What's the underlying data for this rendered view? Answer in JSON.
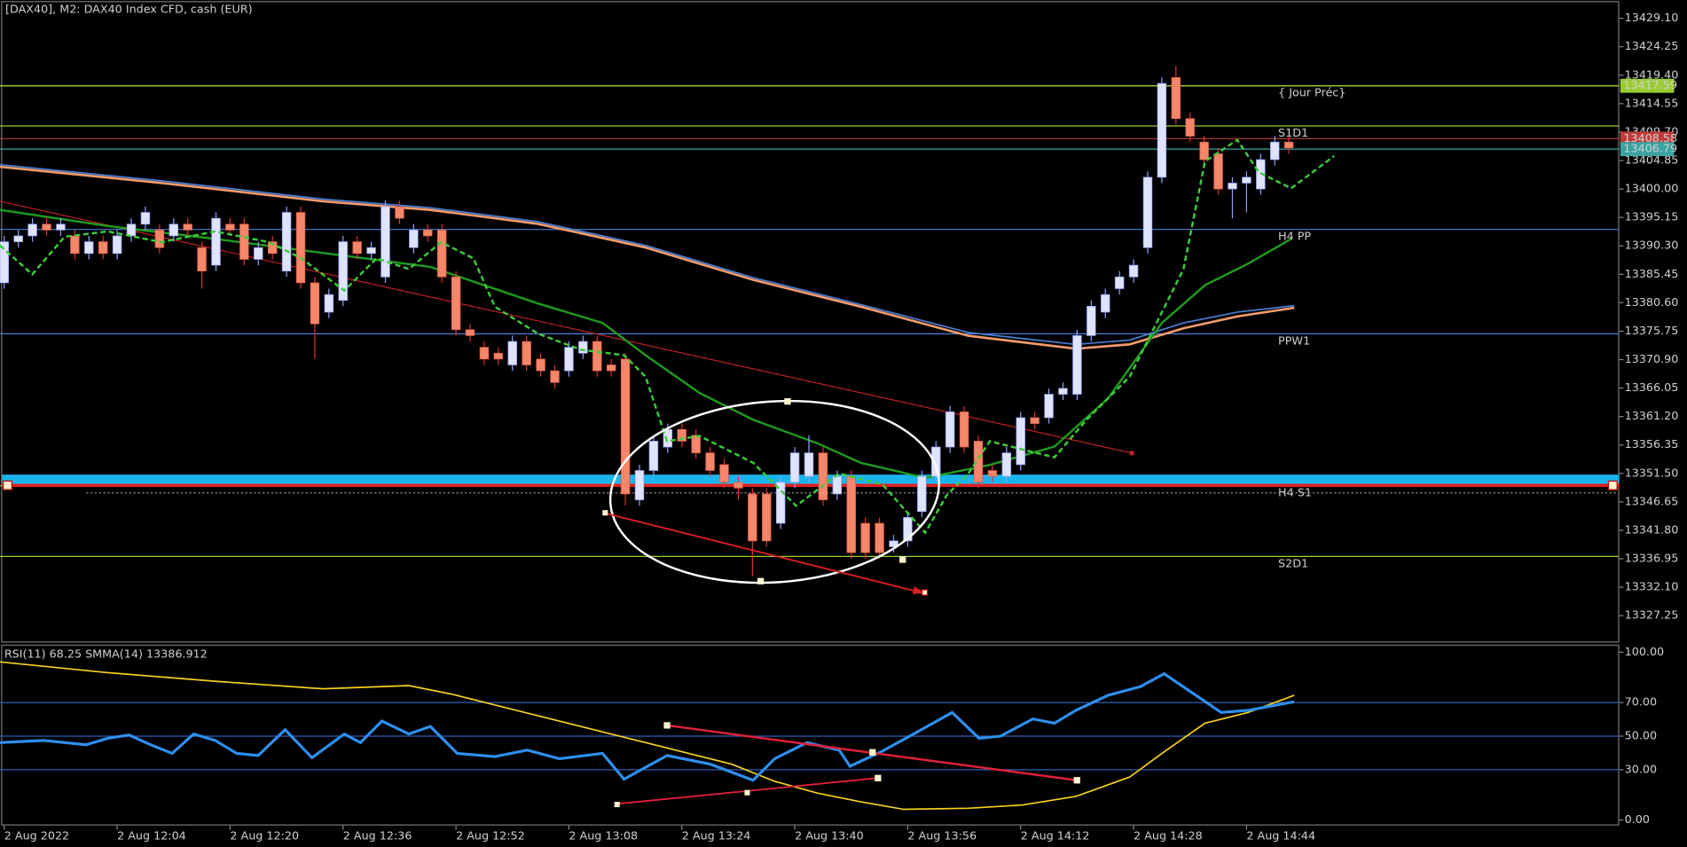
{
  "chart_data": {
    "type": "candlestick",
    "title": "[DAX40], M2:  DAX40 Index CFD, cash (EUR)",
    "bull_color": "#dfe3ff",
    "bear_color": "#f4866a",
    "open": [
      13384,
      13391,
      13392,
      13394,
      13393,
      13392,
      13389,
      13391,
      13389,
      13392,
      13394,
      13393,
      13392,
      13394,
      13390,
      13387,
      13394,
      13394,
      13388,
      13391,
      13386,
      13396,
      13384,
      13379,
      13381,
      13391,
      13389,
      13385,
      13397,
      13390,
      13393,
      13393,
      13385,
      13376,
      13373,
      13372,
      13370,
      13374,
      13371,
      13369,
      13369,
      13372,
      13374,
      13370,
      13371,
      13347,
      13352,
      13356,
      13359,
      13358,
      13355,
      13353,
      13350,
      13348,
      13348,
      13343,
      13350,
      13351,
      13355,
      13348,
      13351,
      13343,
      13343,
      13339,
      13340,
      13345,
      13351,
      13356,
      13362,
      13357,
      13352,
      13351,
      13353,
      13361,
      13361,
      13365,
      13365,
      13375,
      13379,
      13383,
      13385,
      13390,
      13402,
      13419,
      13412,
      13408,
      13406,
      13400,
      13401,
      13400,
      13405,
      13408
    ],
    "high": [
      13392,
      13393,
      13395,
      13395,
      13395,
      13393,
      13392,
      13392,
      13393,
      13395,
      13397,
      13394,
      13395,
      13395,
      13391,
      13396,
      13395,
      13395,
      13391,
      13392,
      13397,
      13397,
      13385,
      13383,
      13392,
      13392,
      13391,
      13398,
      13398,
      13394,
      13394,
      13394,
      13386,
      13377,
      13374,
      13373,
      13375,
      13375,
      13372,
      13370,
      13374,
      13375,
      13375,
      13371,
      13372,
      13353,
      13358,
      13360,
      13360,
      13359,
      13356,
      13354,
      13351,
      13349,
      13349,
      13351,
      13356,
      13358,
      13356,
      13352,
      13352,
      13344,
      13344,
      13341,
      13345,
      13352,
      13357,
      13363,
      13363,
      13358,
      13353,
      13356,
      13362,
      13362,
      13366,
      13367,
      13376,
      13381,
      13383,
      13386,
      13388,
      13403,
      13419,
      13421,
      13413,
      13409,
      13407,
      13402,
      13403,
      13406,
      13409,
      13409
    ],
    "low": [
      13383,
      13390,
      13391,
      13392,
      13392,
      13388,
      13388,
      13388,
      13388,
      13391,
      13393,
      13389,
      13391,
      13392,
      13383,
      13386,
      13392,
      13387,
      13387,
      13388,
      13385,
      13383,
      13371,
      13378,
      13380,
      13388,
      13388,
      13384,
      13394,
      13389,
      13391,
      13384,
      13375,
      13374,
      13370,
      13370,
      13369,
      13369,
      13368,
      13366,
      13368,
      13371,
      13368,
      13368,
      13346,
      13346,
      13351,
      13355,
      13356,
      13354,
      13351,
      13349,
      13347,
      13334,
      13339,
      13342,
      13349,
      13350,
      13346,
      13347,
      13337,
      13337,
      13337,
      13338,
      13339,
      13344,
      13350,
      13355,
      13355,
      13349,
      13350,
      13350,
      13352,
      13359,
      13360,
      13364,
      13364,
      13374,
      13378,
      13382,
      13384,
      13389,
      13401,
      13411,
      13408,
      13404,
      13399,
      13395,
      13396,
      13399,
      13404,
      13406
    ],
    "close": [
      13391,
      13392,
      13394,
      13393,
      13394,
      13389,
      13391,
      13389,
      13392,
      13394,
      13396,
      13390,
      13394,
      13393,
      13386,
      13395,
      13393,
      13388,
      13390,
      13389,
      13396,
      13384,
      13377,
      13382,
      13391,
      13389,
      13390,
      13397,
      13395,
      13393,
      13392,
      13385,
      13376,
      13375,
      13371,
      13371,
      13374,
      13370,
      13369,
      13367,
      13373,
      13374,
      13369,
      13369,
      13348,
      13352,
      13357,
      13359,
      13357,
      13355,
      13352,
      13350,
      13349,
      13340,
      13340,
      13350,
      13355,
      13355,
      13347,
      13351,
      13338,
      13338,
      13338,
      13340,
      13344,
      13351,
      13356,
      13362,
      13356,
      13350,
      13351,
      13355,
      13361,
      13360,
      13365,
      13366,
      13375,
      13380,
      13382,
      13385,
      13387,
      13402,
      13418,
      13412,
      13409,
      13405,
      13400,
      13401,
      13402,
      13405,
      13408,
      13407
    ],
    "ylim": [
      13322.67,
      13432.22
    ],
    "yticks": [
      {
        "value": 13429.1,
        "label": "13429.10"
      },
      {
        "value": 13424.25,
        "label": "13424.25"
      },
      {
        "value": 13419.4,
        "label": "13419.40"
      },
      {
        "value": 13414.55,
        "label": "13414.55"
      },
      {
        "value": 13409.7,
        "label": "13409.70"
      },
      {
        "value": 13404.85,
        "label": "13404.85"
      },
      {
        "value": 13400,
        "label": "13400.00"
      },
      {
        "value": 13395.15,
        "label": "13395.15"
      },
      {
        "value": 13390.3,
        "label": "13390.30"
      },
      {
        "value": 13385.45,
        "label": "13385.45"
      },
      {
        "value": 13380.6,
        "label": "13380.60"
      },
      {
        "value": 13375.75,
        "label": "13375.75"
      },
      {
        "value": 13370.9,
        "label": "13370.90"
      },
      {
        "value": 13366.05,
        "label": "13366.05"
      },
      {
        "value": 13361.2,
        "label": "13361.20"
      },
      {
        "value": 13356.35,
        "label": "13356.35"
      },
      {
        "value": 13351.5,
        "label": "13351.50"
      },
      {
        "value": 13346.65,
        "label": "13346.65"
      },
      {
        "value": 13341.8,
        "label": "13341.80"
      },
      {
        "value": 13336.95,
        "label": "13336.95"
      },
      {
        "value": 13332.1,
        "label": "13332.10"
      },
      {
        "value": 13327.25,
        "label": "13327.25"
      }
    ],
    "xlim": [
      -0.3,
      114.4
    ],
    "xticks": [
      {
        "value": 0,
        "label": "2 Aug 2022"
      },
      {
        "value": 8,
        "label": "2 Aug 12:04"
      },
      {
        "value": 16,
        "label": "2 Aug 12:20"
      },
      {
        "value": 24,
        "label": "2 Aug 12:36"
      },
      {
        "value": 32,
        "label": "2 Aug 12:52"
      },
      {
        "value": 40,
        "label": "2 Aug 13:08"
      },
      {
        "value": 48,
        "label": "2 Aug 13:24"
      },
      {
        "value": 56,
        "label": "2 Aug 13:40"
      },
      {
        "value": 64,
        "label": "2 Aug 13:56"
      },
      {
        "value": 72,
        "label": "2 Aug 14:12"
      },
      {
        "value": 80,
        "label": "2 Aug 14:28"
      },
      {
        "value": 88,
        "label": "2 Aug 14:44"
      }
    ],
    "levels": [
      {
        "name": "{ Jour Préc}",
        "value": 13417.59,
        "color": "#9acd32"
      },
      {
        "name": "S1D1",
        "value": 13410.75,
        "color": "#9acd32"
      },
      {
        "name": "H4 PP",
        "value": 13393.1,
        "color": "#4a7fd6"
      },
      {
        "name": "PPW1",
        "value": 13375.3,
        "color": "#4a7fd6"
      },
      {
        "name": "H4 S1",
        "value": 13349.4,
        "color": "#9acd32"
      },
      {
        "name": "S2D1",
        "value": 13337.35,
        "color": "#9acd32"
      }
    ],
    "price_tags": [
      {
        "value": 13408.58,
        "color": "#c23b3b"
      },
      {
        "value": 13417.59,
        "color": "#9acd32"
      },
      {
        "value": 13406.79,
        "color": "#3aa3a3"
      }
    ],
    "rsi": {
      "title": "RSI(11) 68.25 SMMA(14) 13386.912",
      "ylim": [
        0,
        100
      ],
      "yticks": [
        {
          "value": 100,
          "label": "100.00"
        },
        {
          "value": 70,
          "label": "70.00"
        },
        {
          "value": 50,
          "label": "50.00"
        },
        {
          "value": 30,
          "label": "30.00"
        },
        {
          "value": 0,
          "label": "0.00"
        }
      ],
      "levels": [
        70,
        50,
        30
      ]
    }
  }
}
